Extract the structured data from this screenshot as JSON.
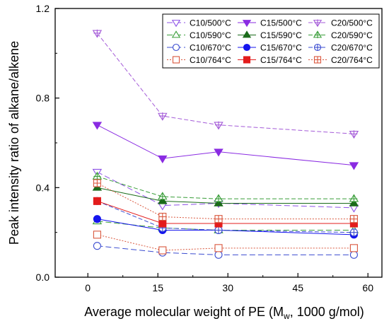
{
  "chart_data": {
    "type": "line",
    "xlabel": "Average molecular weight of PE (M_w, 1000 g/mol)",
    "ylabel": "Peak intensity ratio of alkane/alkene",
    "xlim": [
      -7,
      63
    ],
    "ylim": [
      0,
      1.2
    ],
    "xticks": [
      "0",
      "15",
      "30",
      "45",
      "60"
    ],
    "yticks": [
      "0.0",
      "0.4",
      "0.8",
      "1.2"
    ],
    "x": [
      2,
      16,
      28,
      57
    ],
    "legend_position": "top-right",
    "series": [
      {
        "name": "C10/500°C",
        "values": [
          0.47,
          0.32,
          0.33,
          0.31
        ],
        "color": "#8d52e6",
        "marker": "tri-down",
        "filled": false,
        "dash": "8,4"
      },
      {
        "name": "C15/500°C",
        "values": [
          0.68,
          0.53,
          0.56,
          0.5
        ],
        "color": "#8a2be2",
        "marker": "tri-down",
        "filled": true,
        "dash": ""
      },
      {
        "name": "C20/500°C",
        "values": [
          1.09,
          0.72,
          0.68,
          0.64
        ],
        "color": "#a45bd8",
        "marker": "tri-down-plus",
        "filled": false,
        "dash": "6,3"
      },
      {
        "name": "C10/590°C",
        "values": [
          0.25,
          0.22,
          0.21,
          0.21
        ],
        "color": "#3a9e3a",
        "marker": "tri-up",
        "filled": false,
        "dash": "8,4"
      },
      {
        "name": "C15/590°C",
        "values": [
          0.4,
          0.34,
          0.33,
          0.33
        ],
        "color": "#1a6b1a",
        "marker": "tri-up",
        "filled": true,
        "dash": ""
      },
      {
        "name": "C20/590°C",
        "values": [
          0.45,
          0.36,
          0.35,
          0.35
        ],
        "color": "#3a9e3a",
        "marker": "tri-up-plus",
        "filled": false,
        "dash": "6,3"
      },
      {
        "name": "C10/670°C",
        "values": [
          0.14,
          0.11,
          0.1,
          0.1
        ],
        "color": "#3b4cd0",
        "marker": "circle",
        "filled": false,
        "dash": "8,4"
      },
      {
        "name": "C15/670°C",
        "values": [
          0.26,
          0.21,
          0.21,
          0.19
        ],
        "color": "#1515ee",
        "marker": "circle",
        "filled": true,
        "dash": ""
      },
      {
        "name": "C20/670°C",
        "values": [
          0.34,
          0.22,
          0.21,
          0.2
        ],
        "color": "#3b4cd0",
        "marker": "circle-plus",
        "filled": false,
        "dash": "6,3"
      },
      {
        "name": "C10/764°C",
        "values": [
          0.19,
          0.12,
          0.13,
          0.13
        ],
        "color": "#d9573d",
        "marker": "square",
        "filled": false,
        "dash": "2,2"
      },
      {
        "name": "C15/764°C",
        "values": [
          0.34,
          0.24,
          0.24,
          0.24
        ],
        "color": "#e31c1c",
        "marker": "square",
        "filled": true,
        "dash": ""
      },
      {
        "name": "C20/764°C",
        "values": [
          0.42,
          0.27,
          0.26,
          0.26
        ],
        "color": "#d9573d",
        "marker": "square-plus",
        "filled": false,
        "dash": "2,2"
      }
    ]
  }
}
